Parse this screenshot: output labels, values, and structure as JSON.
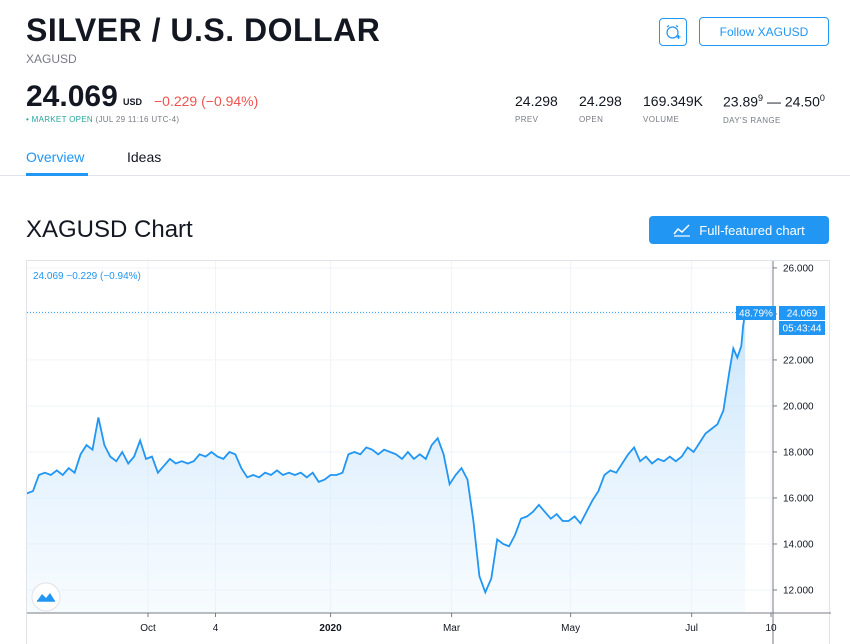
{
  "header": {
    "title": "SILVER / U.S. DOLLAR",
    "symbol": "XAGUSD",
    "follow_label": "Follow XAGUSD"
  },
  "quote": {
    "price": "24.069",
    "currency": "USD",
    "change": "−0.229 (−0.94%)",
    "status_label": "• MARKET OPEN",
    "status_time": "(JUL 29 11:16 UTC-4)"
  },
  "stats": [
    {
      "value": "24.298",
      "label": "PREV"
    },
    {
      "value": "24.298",
      "label": "OPEN"
    },
    {
      "value": "169.349K",
      "label": "VOLUME"
    },
    {
      "value_low": "23.89",
      "value_low_sup": "9",
      "separator": " — ",
      "value_high": "24.50",
      "value_high_sup": "0",
      "label": "DAY'S RANGE"
    }
  ],
  "tabs": [
    "Overview",
    "Ideas"
  ],
  "chart_section": {
    "title": "XAGUSD Chart",
    "full_chart_label": "Full-featured chart",
    "legend": "24.069  −0.229 (−0.94%)",
    "badge_percent": "48.79%",
    "badge_price": "24.069",
    "badge_countdown": "05:43:44"
  },
  "colors": {
    "accent": "#2196f3",
    "negative": "#ef5350",
    "market_open": "#26a69a",
    "line": "#2196f3",
    "area_fill": "#e3f2fd"
  },
  "icons": [
    "alarm-clock-icon",
    "chart-line-icon",
    "tradingview-logo-icon"
  ],
  "chart_data": {
    "type": "area",
    "title": "",
    "xlabel": "",
    "ylabel": "",
    "ylim": [
      11,
      26.3
    ],
    "yticks": [
      12,
      14,
      16,
      18,
      20,
      22,
      24,
      26
    ],
    "ytick_labels": [
      "12.000",
      "14.000",
      "16.000",
      "18.000",
      "20.000",
      "22.000",
      "24.000",
      "26.000"
    ],
    "x_range": [
      "2019-08-01",
      "2020-08-11"
    ],
    "x_tick_labels": [
      {
        "label": "Oct",
        "date": "2019-10-01"
      },
      {
        "label": "4",
        "date": "2019-11-04"
      },
      {
        "label": "2020",
        "date": "2020-01-01"
      },
      {
        "label": "Mar",
        "date": "2020-03-02"
      },
      {
        "label": "May",
        "date": "2020-05-01"
      },
      {
        "label": "Jul",
        "date": "2020-07-01"
      },
      {
        "label": "10",
        "date": "2020-08-10"
      }
    ],
    "grid": true,
    "series": [
      {
        "points": [
          [
            "2019-08-01",
            16.2
          ],
          [
            "2019-08-04",
            16.3
          ],
          [
            "2019-08-07",
            17.0
          ],
          [
            "2019-08-10",
            17.1
          ],
          [
            "2019-08-13",
            17.0
          ],
          [
            "2019-08-16",
            17.2
          ],
          [
            "2019-08-19",
            17.0
          ],
          [
            "2019-08-22",
            17.3
          ],
          [
            "2019-08-25",
            17.1
          ],
          [
            "2019-08-28",
            17.9
          ],
          [
            "2019-08-31",
            18.3
          ],
          [
            "2019-09-03",
            18.1
          ],
          [
            "2019-09-06",
            19.5
          ],
          [
            "2019-09-09",
            18.3
          ],
          [
            "2019-09-12",
            17.8
          ],
          [
            "2019-09-15",
            17.6
          ],
          [
            "2019-09-18",
            18.0
          ],
          [
            "2019-09-21",
            17.5
          ],
          [
            "2019-09-24",
            17.8
          ],
          [
            "2019-09-27",
            18.5
          ],
          [
            "2019-09-30",
            17.7
          ],
          [
            "2019-10-03",
            17.8
          ],
          [
            "2019-10-06",
            17.1
          ],
          [
            "2019-10-09",
            17.4
          ],
          [
            "2019-10-12",
            17.7
          ],
          [
            "2019-10-15",
            17.5
          ],
          [
            "2019-10-18",
            17.6
          ],
          [
            "2019-10-21",
            17.5
          ],
          [
            "2019-10-24",
            17.6
          ],
          [
            "2019-10-27",
            17.9
          ],
          [
            "2019-10-30",
            17.8
          ],
          [
            "2019-11-02",
            18.0
          ],
          [
            "2019-11-05",
            17.8
          ],
          [
            "2019-11-08",
            17.7
          ],
          [
            "2019-11-11",
            18.0
          ],
          [
            "2019-11-14",
            17.9
          ],
          [
            "2019-11-17",
            17.3
          ],
          [
            "2019-11-20",
            16.9
          ],
          [
            "2019-11-23",
            17.0
          ],
          [
            "2019-11-26",
            16.9
          ],
          [
            "2019-11-29",
            17.1
          ],
          [
            "2019-12-02",
            17.0
          ],
          [
            "2019-12-05",
            17.2
          ],
          [
            "2019-12-08",
            17.0
          ],
          [
            "2019-12-11",
            17.1
          ],
          [
            "2019-12-14",
            17.0
          ],
          [
            "2019-12-17",
            17.1
          ],
          [
            "2019-12-20",
            16.9
          ],
          [
            "2019-12-23",
            17.1
          ],
          [
            "2019-12-26",
            16.7
          ],
          [
            "2019-12-29",
            16.8
          ],
          [
            "2020-01-01",
            17.0
          ],
          [
            "2020-01-04",
            17.0
          ],
          [
            "2020-01-07",
            17.1
          ],
          [
            "2020-01-10",
            17.9
          ],
          [
            "2020-01-13",
            18.0
          ],
          [
            "2020-01-16",
            17.9
          ],
          [
            "2020-01-19",
            18.2
          ],
          [
            "2020-01-22",
            18.1
          ],
          [
            "2020-01-25",
            17.9
          ],
          [
            "2020-01-28",
            18.1
          ],
          [
            "2020-01-31",
            18.0
          ],
          [
            "2020-02-03",
            17.9
          ],
          [
            "2020-02-06",
            17.7
          ],
          [
            "2020-02-09",
            18.0
          ],
          [
            "2020-02-12",
            17.7
          ],
          [
            "2020-02-15",
            17.9
          ],
          [
            "2020-02-18",
            17.7
          ],
          [
            "2020-02-21",
            18.3
          ],
          [
            "2020-02-24",
            18.6
          ],
          [
            "2020-02-27",
            17.9
          ],
          [
            "2020-03-01",
            16.6
          ],
          [
            "2020-03-04",
            17.0
          ],
          [
            "2020-03-07",
            17.3
          ],
          [
            "2020-03-10",
            16.8
          ],
          [
            "2020-03-13",
            15.0
          ],
          [
            "2020-03-16",
            12.6
          ],
          [
            "2020-03-19",
            11.9
          ],
          [
            "2020-03-22",
            12.5
          ],
          [
            "2020-03-25",
            14.2
          ],
          [
            "2020-03-28",
            14.0
          ],
          [
            "2020-03-31",
            13.9
          ],
          [
            "2020-04-03",
            14.4
          ],
          [
            "2020-04-06",
            15.1
          ],
          [
            "2020-04-09",
            15.2
          ],
          [
            "2020-04-12",
            15.4
          ],
          [
            "2020-04-15",
            15.7
          ],
          [
            "2020-04-18",
            15.4
          ],
          [
            "2020-04-21",
            15.1
          ],
          [
            "2020-04-24",
            15.3
          ],
          [
            "2020-04-27",
            15.0
          ],
          [
            "2020-04-30",
            15.0
          ],
          [
            "2020-05-03",
            15.2
          ],
          [
            "2020-05-06",
            14.9
          ],
          [
            "2020-05-09",
            15.4
          ],
          [
            "2020-05-12",
            15.9
          ],
          [
            "2020-05-15",
            16.3
          ],
          [
            "2020-05-18",
            17.0
          ],
          [
            "2020-05-21",
            17.2
          ],
          [
            "2020-05-24",
            17.1
          ],
          [
            "2020-05-27",
            17.5
          ],
          [
            "2020-05-30",
            17.9
          ],
          [
            "2020-06-02",
            18.2
          ],
          [
            "2020-06-05",
            17.6
          ],
          [
            "2020-06-08",
            17.8
          ],
          [
            "2020-06-11",
            17.5
          ],
          [
            "2020-06-14",
            17.7
          ],
          [
            "2020-06-17",
            17.6
          ],
          [
            "2020-06-20",
            17.8
          ],
          [
            "2020-06-23",
            17.6
          ],
          [
            "2020-06-26",
            17.8
          ],
          [
            "2020-06-29",
            18.2
          ],
          [
            "2020-07-02",
            18.0
          ],
          [
            "2020-07-05",
            18.4
          ],
          [
            "2020-07-08",
            18.8
          ],
          [
            "2020-07-11",
            19.0
          ],
          [
            "2020-07-14",
            19.2
          ],
          [
            "2020-07-17",
            19.8
          ],
          [
            "2020-07-20",
            21.5
          ],
          [
            "2020-07-22",
            22.5
          ],
          [
            "2020-07-24",
            22.1
          ],
          [
            "2020-07-26",
            22.6
          ],
          [
            "2020-07-27",
            23.5
          ],
          [
            "2020-07-28",
            24.069
          ]
        ]
      }
    ]
  }
}
